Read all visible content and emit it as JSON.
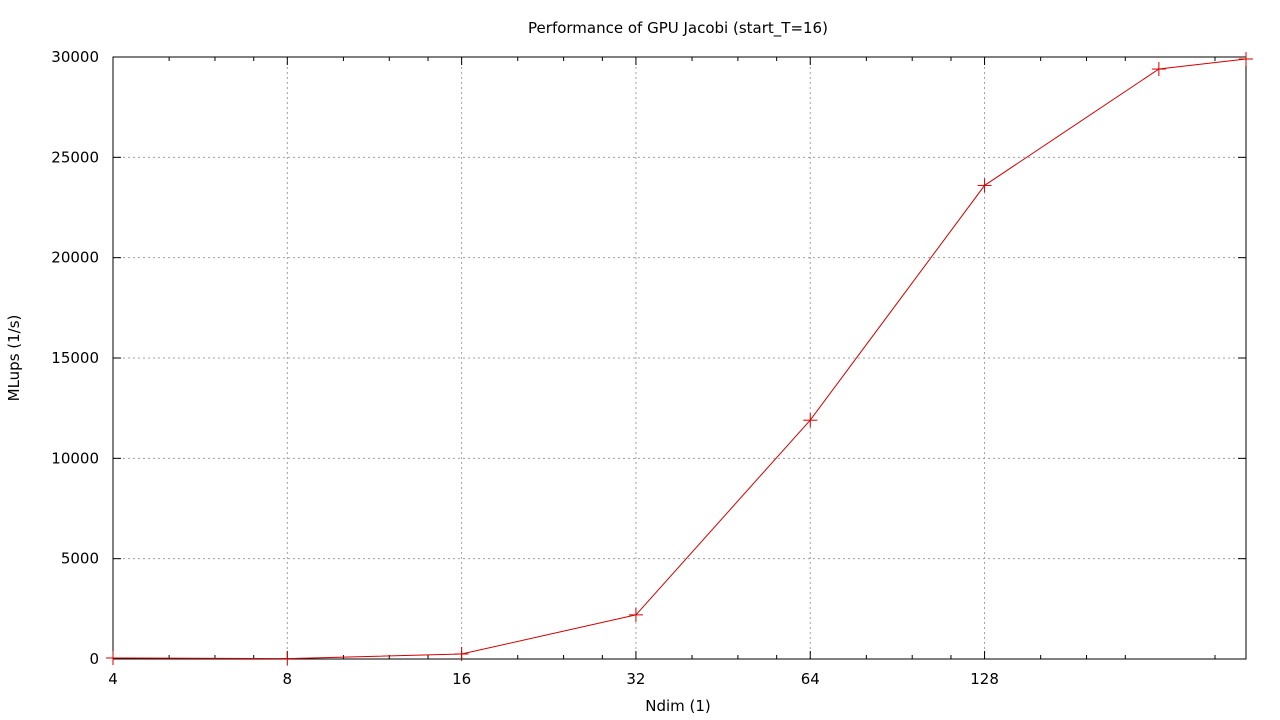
{
  "chart_data": {
    "type": "line",
    "title": "Performance of GPU Jacobi (start_T=16)",
    "xlabel": "Ndim (1)",
    "ylabel": "MLups (1/s)",
    "xscale": "log2",
    "xlim": [
      4,
      362
    ],
    "ylim": [
      0,
      30000
    ],
    "xticks": [
      4,
      8,
      16,
      32,
      64,
      128
    ],
    "yticks": [
      0,
      5000,
      10000,
      15000,
      20000,
      25000,
      30000
    ],
    "grid": true,
    "legend": "none",
    "series": [
      {
        "color": "#d40000",
        "marker": "plus",
        "x": [
          4,
          8,
          16,
          32,
          64,
          128,
          256,
          362
        ],
        "y": [
          50,
          20,
          250,
          2200,
          11900,
          23600,
          29400,
          29900
        ]
      }
    ]
  }
}
